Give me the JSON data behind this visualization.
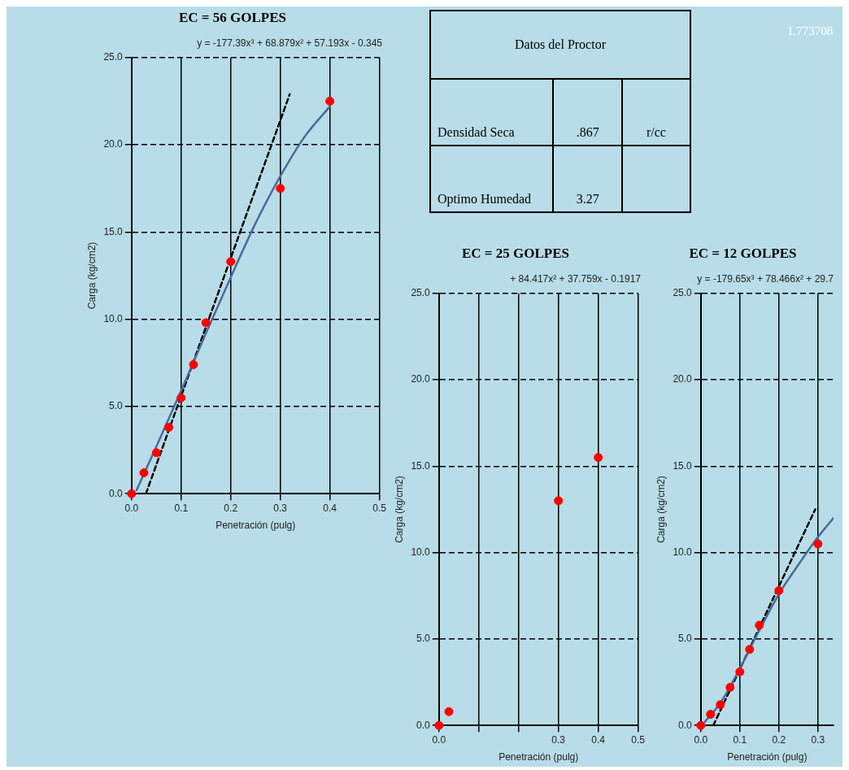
{
  "chart_data": [
    {
      "type": "scatter",
      "title": "EC = 56 GOLPES",
      "subtitle": "y = -177.39x³ + 68.879x² + 57.193x - 0.345",
      "xlabel": "Penetración (pulg)",
      "ylabel": "Carga (kg/cm2)",
      "xlim": [
        0,
        0.5
      ],
      "xticks": [
        {
          "value": 0,
          "label": "0.0"
        },
        0.1,
        0.2,
        0.3,
        0.4,
        0.5
      ],
      "ylim": [
        0,
        25
      ],
      "yticks": [
        {
          "value": 0,
          "label": "0.0"
        },
        {
          "value": 5,
          "label": "5.0"
        },
        {
          "value": 10,
          "label": "10.0"
        },
        {
          "value": 15,
          "label": "15.0"
        },
        {
          "value": 20,
          "label": "20.0"
        },
        {
          "value": 25,
          "label": "25.0"
        }
      ],
      "grid": true,
      "series": [
        {
          "type": "line",
          "color": "#4a6a9c",
          "line_style": "solid",
          "x": [
            0.01,
            0.05,
            0.1,
            0.15,
            0.2,
            0.25,
            0.3,
            0.35,
            0.4
          ],
          "values": [
            0.2,
            2.7,
            5.9,
            9.2,
            12.4,
            15.5,
            18.2,
            20.5,
            22.2
          ]
        },
        {
          "type": "line",
          "color": "#000000",
          "line_style": "dashed",
          "x": [
            0.029,
            0.319
          ],
          "values": [
            0,
            22.9
          ]
        },
        {
          "type": "scatter",
          "color": "#ff0000",
          "marker": "circle",
          "x": [
            0,
            0.025,
            0.05,
            0.075,
            0.1,
            0.125,
            0.15,
            0.2,
            0.3,
            0.4
          ],
          "values": [
            0,
            1.2,
            2.35,
            3.8,
            5.5,
            7.4,
            9.8,
            13.3,
            17.5,
            22.5
          ]
        }
      ]
    },
    {
      "type": "scatter",
      "title": "EC = 25 GOLPES",
      "subtitle": "+ 84.417x² + 37.759x - 0.1917",
      "xlabel": "Penetración (pulg)",
      "ylabel": "Carga (kg/cm2)",
      "xlim": [
        0,
        0.5
      ],
      "xticks": [
        {
          "value": 0,
          "label": "0.0"
        },
        {
          "value": 0.1,
          "label": null
        },
        {
          "value": 0.2,
          "label": null
        },
        0.3,
        0.4,
        0.5
      ],
      "ylim": [
        0,
        25
      ],
      "yticks": [
        {
          "value": 0,
          "label": "0.0"
        },
        {
          "value": 5,
          "label": "5.0"
        },
        {
          "value": 10,
          "label": "10.0"
        },
        {
          "value": 15,
          "label": "15.0"
        },
        {
          "value": 20,
          "label": "20.0"
        },
        {
          "value": 25,
          "label": "25.0"
        }
      ],
      "grid": true,
      "series": [
        {
          "type": "scatter",
          "color": "#ff0000",
          "marker": "circle",
          "x": [
            0,
            0.025,
            0.3,
            0.4
          ],
          "values": [
            0,
            0.8,
            13.0,
            15.5
          ]
        }
      ]
    },
    {
      "type": "scatter",
      "title": "EC = 12 GOLPES",
      "subtitle": "y = -179.65x³ + 78.466x² + 29.7",
      "xlabel": "Penetración (pulg)",
      "ylabel": "Carga (kg/cm2)",
      "xlim": [
        0,
        0.34
      ],
      "xticks": [
        {
          "value": 0,
          "label": "0.0"
        },
        0.1,
        0.2,
        0.3
      ],
      "ylim": [
        0,
        25
      ],
      "yticks": [
        {
          "value": 0,
          "label": "0.0"
        },
        {
          "value": 5,
          "label": "5.0"
        },
        {
          "value": 10,
          "label": "10.0"
        },
        {
          "value": 15,
          "label": "15.0"
        },
        {
          "value": 20,
          "label": "20.0"
        },
        {
          "value": 25,
          "label": "25.0"
        }
      ],
      "grid": true,
      "series": [
        {
          "type": "line",
          "color": "#4a6a9c",
          "line_style": "solid",
          "x": [
            0.01,
            0.05,
            0.1,
            0.15,
            0.2,
            0.25,
            0.3,
            0.34
          ],
          "values": [
            0.2,
            1.3,
            3.3,
            5.5,
            7.6,
            9.3,
            10.9,
            12.0
          ]
        },
        {
          "type": "line",
          "color": "#000000",
          "line_style": "dashed",
          "x": [
            0.032,
            0.293
          ],
          "values": [
            0,
            12.5
          ]
        },
        {
          "type": "scatter",
          "color": "#ff0000",
          "marker": "circle",
          "x": [
            0,
            0.025,
            0.05,
            0.075,
            0.1,
            0.125,
            0.15,
            0.2,
            0.3
          ],
          "values": [
            0,
            0.64,
            1.2,
            2.2,
            3.1,
            4.4,
            5.8,
            7.8,
            10.5
          ]
        }
      ]
    },
    {
      "type": "other",
      "title": "Datos del Proctor",
      "annotations": [
        "Densidad Seca",
        ".867",
        "r/cc",
        "Optimo Humedad",
        "3.27",
        "1.773708"
      ]
    }
  ]
}
